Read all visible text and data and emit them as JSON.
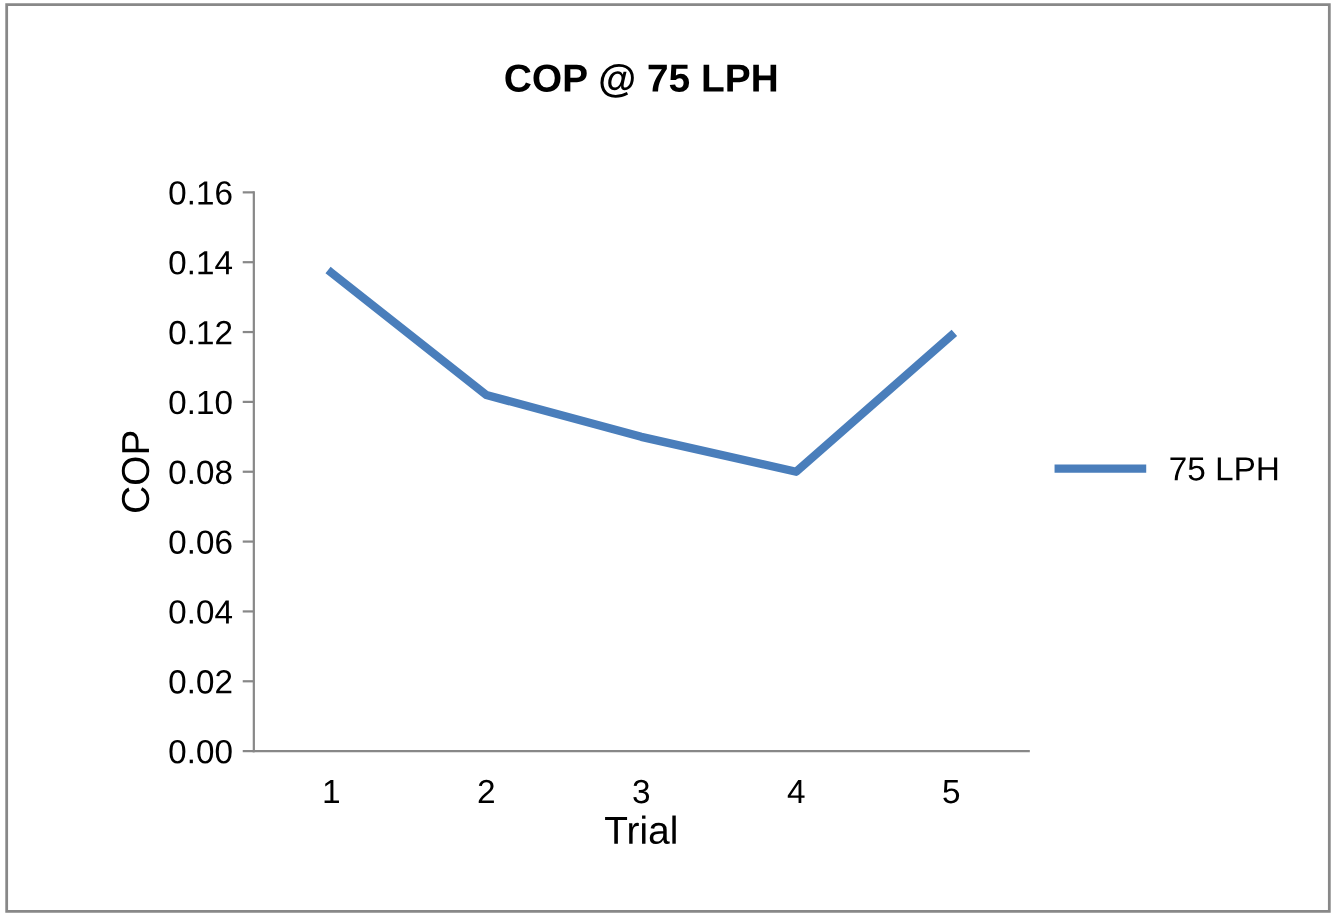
{
  "chart_data": {
    "type": "line",
    "title": "COP @ 75 LPH",
    "xlabel": "Trial",
    "ylabel": "COP",
    "categories": [
      "1",
      "2",
      "3",
      "4",
      "5"
    ],
    "series": [
      {
        "name": "75 LPH",
        "color": "#4a7ebb",
        "values": [
          0.137,
          0.102,
          0.09,
          0.08,
          0.119
        ]
      }
    ],
    "ylim": [
      0,
      0.16
    ],
    "yticks": [
      {
        "value": 0,
        "label": "0.00"
      },
      {
        "value": 0.02,
        "label": "0.02"
      },
      {
        "value": 0.04,
        "label": "0.04"
      },
      {
        "value": 0.06,
        "label": "0.06"
      },
      {
        "value": 0.08,
        "label": "0.08"
      },
      {
        "value": 0.1,
        "label": "0.10"
      },
      {
        "value": 0.12,
        "label": "0.12"
      },
      {
        "value": 0.14,
        "label": "0.14"
      },
      {
        "value": 0.16,
        "label": "0.16"
      }
    ],
    "grid": false,
    "legend": "right",
    "marker": "none",
    "line_style": "solid"
  }
}
